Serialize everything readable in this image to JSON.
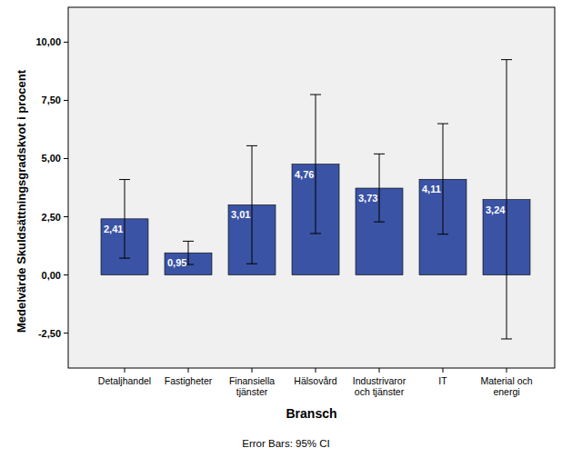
{
  "chart_data": {
    "type": "bar",
    "x_label": "Bransch",
    "y_label": "Medelvärde Skuldsättningsgradskvot i procent",
    "annotations": [
      "Error Bars: 95% CI"
    ],
    "categories": [
      "Detaljhandel",
      "Fastigheter",
      "Finansiella tjänster",
      "Hälsovård",
      "Industrivaror och tjänster",
      "IT",
      "Material och energi"
    ],
    "values": [
      2.41,
      0.95,
      3.01,
      4.76,
      3.73,
      4.11,
      3.24
    ],
    "value_labels": [
      "2,41",
      "0,95",
      "3,01",
      "4,76",
      "3,73",
      "4,11",
      "3,24"
    ],
    "error_low": [
      0.72,
      0.45,
      0.48,
      1.78,
      2.28,
      1.75,
      -2.75
    ],
    "error_high": [
      4.1,
      1.45,
      5.55,
      7.75,
      5.2,
      6.5,
      9.25
    ],
    "color": "#3a53a4",
    "ylim": [
      -4,
      11.5
    ],
    "yticks": [
      {
        "value": -2.5,
        "label": "-2,50"
      },
      {
        "value": 0,
        "label": "0,00"
      },
      {
        "value": 2.5,
        "label": "2,50"
      },
      {
        "value": 5,
        "label": "5,00"
      },
      {
        "value": 7.5,
        "label": "7,50"
      },
      {
        "value": 10,
        "label": "10,00"
      }
    ],
    "grid": false,
    "data_labels": true
  }
}
